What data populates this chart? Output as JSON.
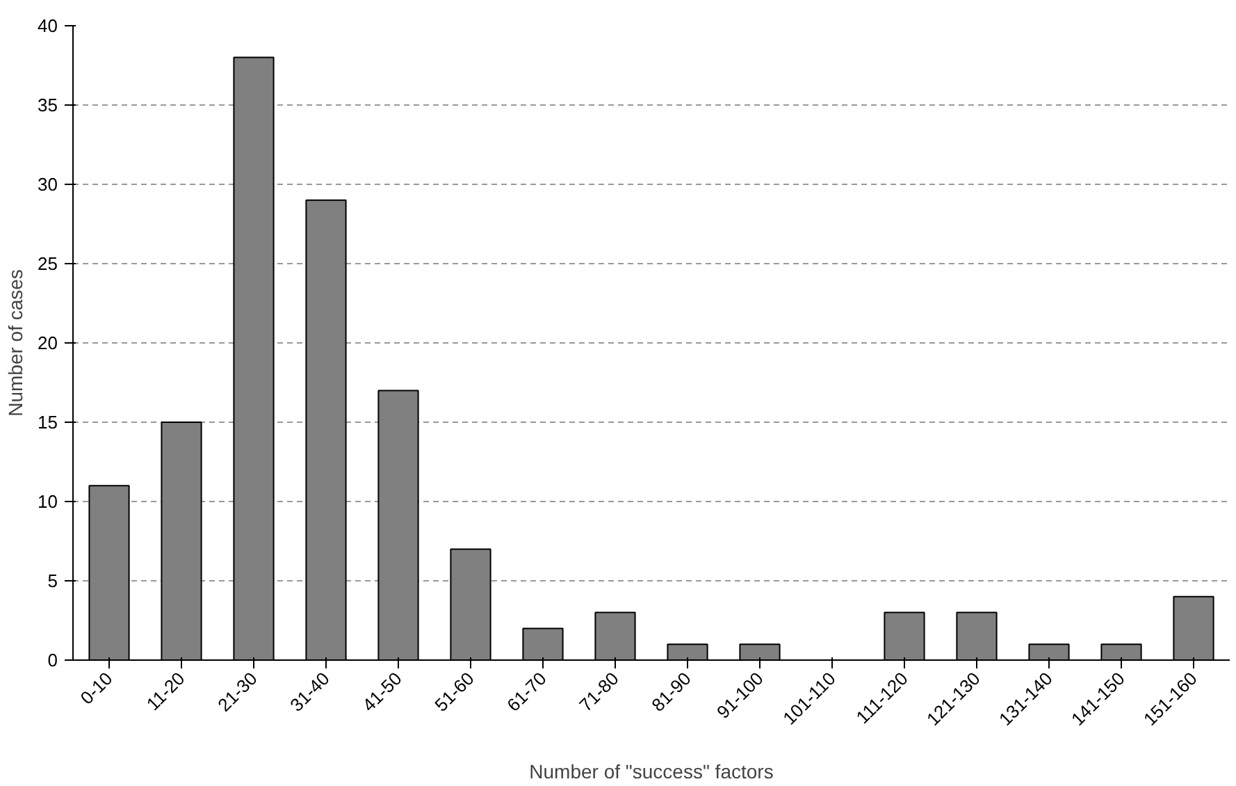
{
  "chart_data": {
    "type": "bar",
    "xlabel": "Number of \"success\" factors",
    "ylabel": "Number of cases",
    "categories": [
      "0-10",
      "11-20",
      "21-30",
      "31-40",
      "41-50",
      "51-60",
      "61-70",
      "71-80",
      "81-90",
      "91-100",
      "101-110",
      "111-120",
      "121-130",
      "131-140",
      "141-150",
      "151-160"
    ],
    "values": [
      11,
      15,
      38,
      29,
      17,
      7,
      2,
      3,
      1,
      1,
      0,
      3,
      3,
      1,
      1,
      4
    ],
    "color": "#808080",
    "ylim": [
      0,
      40
    ],
    "yticks": [
      0,
      5,
      10,
      15,
      20,
      25,
      30,
      35,
      40
    ],
    "grid": "y"
  }
}
